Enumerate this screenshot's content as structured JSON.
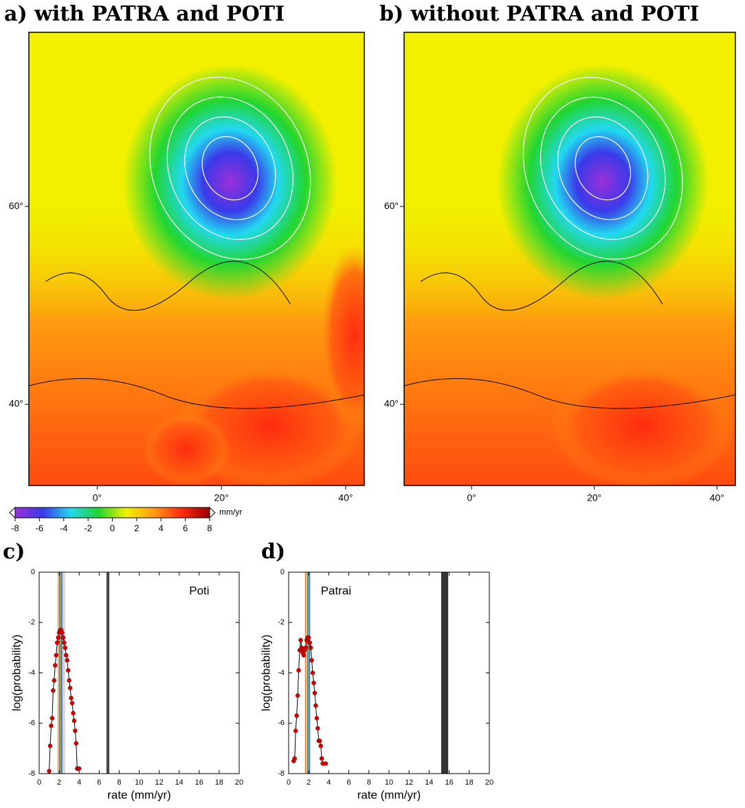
{
  "chart_data": [
    {
      "type": "map",
      "title": "a) with PATRA and POTI",
      "xlim": [
        -11,
        43
      ],
      "ylim": [
        31.8,
        77.6
      ],
      "xticks": [
        {
          "value": 0,
          "label": "0°"
        },
        {
          "value": 20,
          "label": "20°"
        },
        {
          "value": 40,
          "label": "40°"
        }
      ],
      "yticks": [
        {
          "value": 40,
          "label": "40°"
        },
        {
          "value": 60,
          "label": "60°"
        }
      ]
    },
    {
      "type": "map",
      "title": "b) without PATRA and POTI",
      "xlim": [
        -11,
        43
      ],
      "ylim": [
        31.8,
        77.6
      ],
      "xticks": [
        {
          "value": 0,
          "label": "0°"
        },
        {
          "value": 20,
          "label": "20°"
        },
        {
          "value": 40,
          "label": "40°"
        }
      ],
      "yticks": [
        {
          "value": 40,
          "label": "40°"
        },
        {
          "value": 60,
          "label": "60°"
        }
      ]
    },
    {
      "type": "colorbar",
      "label": "mm/yr",
      "xlim": [
        -8,
        8
      ],
      "xticks": [
        -8,
        -6,
        -4,
        -2,
        0,
        2,
        4,
        6,
        8
      ],
      "colors": [
        "#9b30d9",
        "#3a3ae8",
        "#22d8f0",
        "#22d630",
        "#f2f000",
        "#ff9a10",
        "#ff2a10",
        "#9a0000"
      ]
    },
    {
      "type": "line",
      "title": "c)",
      "annotation": "Poti",
      "xlabel": "rate (mm/yr)",
      "ylabel": "log(probability)",
      "x": [
        1.0,
        1.1,
        1.2,
        1.3,
        1.4,
        1.5,
        1.6,
        1.7,
        1.8,
        1.9,
        2.0,
        2.1,
        2.2,
        2.3,
        2.4,
        2.5,
        2.6,
        2.7,
        2.8,
        2.9,
        3.0,
        3.1,
        3.2,
        3.3,
        3.4,
        3.5,
        3.6,
        3.7,
        3.8,
        3.9,
        4.0
      ],
      "values": [
        -7.9,
        -6.9,
        -6.1,
        -5.8,
        -4.7,
        -4.3,
        -3.7,
        -3.3,
        -2.8,
        -2.6,
        -2.4,
        -2.3,
        -2.3,
        -2.4,
        -2.6,
        -2.8,
        -3.0,
        -3.3,
        -3.5,
        -3.9,
        -4.3,
        -4.6,
        -5.0,
        -5.2,
        -5.6,
        -5.9,
        -6.3,
        -6.8,
        -7.8,
        -7.8,
        -7.8
      ],
      "color": "#d40000",
      "line_color": "#000000",
      "ranges": [
        {
          "from": 1.8,
          "to": 2.6,
          "color": "#cccccc"
        }
      ],
      "reference_lines": [
        {
          "value": 2.0,
          "color": "#f08020"
        },
        {
          "value": 2.1,
          "color": "#20a040"
        },
        {
          "value": 2.25,
          "color": "#2060e0"
        },
        {
          "value": 6.8,
          "color": "#000000"
        },
        {
          "value": 6.95,
          "color": "#000000"
        }
      ],
      "xlim": [
        0,
        20
      ],
      "ylim": [
        -8,
        0
      ],
      "xticks": [
        0,
        2,
        4,
        6,
        8,
        10,
        12,
        14,
        16,
        18,
        20
      ],
      "yticks": [
        0,
        -2,
        -4,
        -6,
        -8
      ]
    },
    {
      "type": "line",
      "title": "d)",
      "annotation": "Patrai",
      "xlabel": "rate (mm/yr)",
      "ylabel": "log(probability)",
      "x": [
        0.5,
        0.6,
        0.7,
        0.8,
        0.9,
        1.0,
        1.1,
        1.2,
        1.3,
        1.4,
        1.5,
        1.6,
        1.7,
        1.8,
        1.9,
        2.0,
        2.1,
        2.2,
        2.3,
        2.4,
        2.5,
        2.6,
        2.7,
        2.8,
        2.9,
        3.0,
        3.1,
        3.2,
        3.3,
        3.4,
        3.7
      ],
      "values": [
        -7.5,
        -7.4,
        -6.3,
        -5.7,
        -4.9,
        -3.9,
        -3.1,
        -2.7,
        -3.0,
        -3.2,
        -3.3,
        -3.1,
        -3.0,
        -2.7,
        -2.6,
        -2.6,
        -2.8,
        -3.0,
        -3.5,
        -4.0,
        -4.4,
        -4.8,
        -5.3,
        -5.8,
        -6.2,
        -6.7,
        -6.7,
        -6.9,
        -7.4,
        -7.6,
        -7.6
      ],
      "color": "#d40000",
      "line_color": "#000000",
      "ranges": [
        {
          "from": 1.6,
          "to": 2.2,
          "color": "#cccccc"
        },
        {
          "from": 15.2,
          "to": 15.9,
          "color": "#000000"
        }
      ],
      "reference_lines": [
        {
          "value": 1.7,
          "color": "#f08020"
        },
        {
          "value": 1.9,
          "color": "#20a040"
        },
        {
          "value": 2.05,
          "color": "#2060e0"
        }
      ],
      "xlim": [
        0,
        20
      ],
      "ylim": [
        -8,
        0
      ],
      "xticks": [
        0,
        2,
        4,
        6,
        8,
        10,
        12,
        14,
        16,
        18,
        20
      ],
      "yticks": [
        0,
        -2,
        -4,
        -6,
        -8
      ]
    }
  ]
}
